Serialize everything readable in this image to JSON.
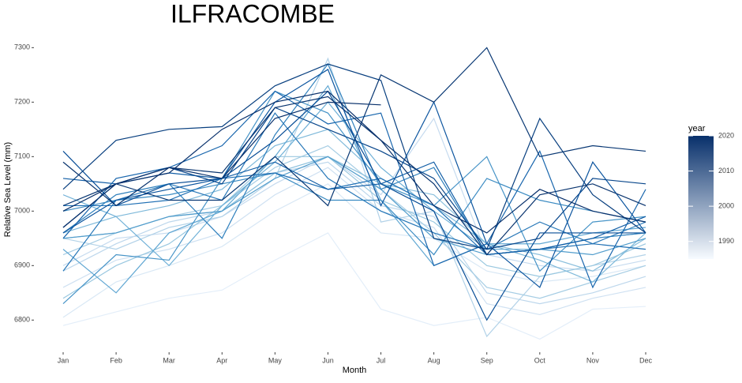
{
  "chart_data": {
    "type": "line",
    "title": "ILFRACOMBE",
    "x_label": "Month",
    "y_label": "Relative Sea Level (mm)",
    "categories": [
      "Jan",
      "Feb",
      "Mar",
      "Apr",
      "May",
      "Jun",
      "Jul",
      "Aug",
      "Sep",
      "Oct",
      "Nov",
      "Dec"
    ],
    "ylim": [
      6770,
      7315
    ],
    "yticks": [
      6800,
      6900,
      7000,
      7100,
      7200,
      7300
    ],
    "grid": false,
    "legend": {
      "title": "year",
      "ticks": [
        1990,
        2000,
        2010,
        2020
      ],
      "range": [
        1985,
        2020
      ],
      "colors": [
        "#f7fbff",
        "#08306b"
      ]
    },
    "series": [
      {
        "year": 1986,
        "color": "#e3eef9",
        "values": [
          6790,
          6815,
          6840,
          6855,
          6910,
          6960,
          6820,
          6790,
          6805,
          6765,
          6820,
          6825
        ]
      },
      {
        "year": 1988,
        "color": "#d9e8f5",
        "values": [
          6805,
          6870,
          6900,
          6935,
          7000,
          7050,
          6960,
          6950,
          6890,
          6870,
          6880,
          6900
        ]
      },
      {
        "year": 1990,
        "color": "#cfe1f2",
        "values": [
          6860,
          6910,
          6930,
          6960,
          7030,
          7080,
          7000,
          6970,
          6830,
          6810,
          6840,
          6860
        ]
      },
      {
        "year": 1991,
        "color": "#c6dbef",
        "values": [
          6900,
          6950,
          6960,
          6990,
          7050,
          7100,
          7030,
          7170,
          6920,
          6900,
          6890,
          6910
        ]
      },
      {
        "year": 1992,
        "color": "#bdd7ec",
        "values": [
          6890,
          6940,
          6980,
          7000,
          7070,
          7090,
          7010,
          6990,
          6850,
          6830,
          6850,
          6880
        ]
      },
      {
        "year": 1993,
        "color": "#b2d2e8",
        "values": [
          6950,
          6930,
          6970,
          6990,
          7060,
          7280,
          6980,
          7000,
          6770,
          6880,
          6900,
          6920
        ]
      },
      {
        "year": 1994,
        "color": "#a6cde4",
        "values": [
          6920,
          6960,
          6990,
          7010,
          7080,
          7120,
          7040,
          6960,
          6860,
          6840,
          6870,
          6900
        ]
      },
      {
        "year": 1995,
        "color": "#9ac8e0",
        "values": [
          6840,
          6900,
          6940,
          7010,
          7100,
          7100,
          7020,
          6980,
          6900,
          6880,
          6900,
          6940
        ]
      },
      {
        "year": 1996,
        "color": "#8cc0dd",
        "values": [
          6950,
          6960,
          6990,
          7000,
          7070,
          7100,
          7050,
          7030,
          6940,
          6920,
          6890,
          6950
        ]
      },
      {
        "year": 1997,
        "color": "#7fb9da",
        "values": [
          6960,
          6990,
          7010,
          7040,
          7120,
          7150,
          7060,
          7010,
          6940,
          6910,
          6870,
          6960
        ]
      },
      {
        "year": 1998,
        "color": "#6fb0d7",
        "values": [
          7030,
          6990,
          6900,
          7010,
          7090,
          7200,
          7080,
          7000,
          6930,
          6930,
          6950,
          6960
        ]
      },
      {
        "year": 1999,
        "color": "#62a8d3",
        "values": [
          6930,
          6850,
          6960,
          7000,
          7100,
          7230,
          7020,
          6900,
          6940,
          6940,
          6960,
          6970
        ]
      },
      {
        "year": 2000,
        "color": "#529dcc",
        "values": [
          6950,
          6960,
          6990,
          7000,
          7060,
          7100,
          7040,
          6950,
          6920,
          6930,
          6920,
          6950
        ]
      },
      {
        "year": 2001,
        "color": "#4794c7",
        "values": [
          6830,
          6920,
          6910,
          7060,
          7220,
          7180,
          7050,
          7010,
          7100,
          6890,
          6980,
          6990
        ]
      },
      {
        "year": 2002,
        "color": "#3b8bc2",
        "values": [
          7000,
          7020,
          7030,
          7050,
          7070,
          7020,
          7020,
          6920,
          7060,
          7020,
          7000,
          6980
        ]
      },
      {
        "year": 2003,
        "color": "#3181bd",
        "values": [
          6960,
          7030,
          7050,
          6950,
          7140,
          7270,
          7040,
          7080,
          6920,
          6930,
          6950,
          6960
        ]
      },
      {
        "year": 2004,
        "color": "#2878b8",
        "values": [
          6890,
          7020,
          7050,
          7020,
          7180,
          7060,
          7000,
          6960,
          6930,
          6980,
          6940,
          6980
        ]
      },
      {
        "year": 2005,
        "color": "#2070b4",
        "values": [
          7010,
          7010,
          7020,
          7060,
          7070,
          7040,
          7060,
          7010,
          6920,
          6930,
          6940,
          6930
        ]
      },
      {
        "year": 2006,
        "color": "#1966ad",
        "values": [
          6950,
          7060,
          7080,
          7120,
          7220,
          7160,
          7180,
          6900,
          6940,
          7110,
          6860,
          7040
        ]
      },
      {
        "year": 2007,
        "color": "#125ea6",
        "values": [
          7060,
          7050,
          7070,
          7060,
          7090,
          7040,
          7050,
          7090,
          6920,
          6930,
          6950,
          6990
        ]
      },
      {
        "year": 2008,
        "color": "#0c559f",
        "values": [
          6960,
          7020,
          7040,
          7060,
          7200,
          7260,
          7010,
          7200,
          6940,
          6860,
          7090,
          6960
        ]
      },
      {
        "year": 2009,
        "color": "#084d96",
        "values": [
          7110,
          7010,
          7050,
          7060,
          7130,
          7220,
          7050,
          7000,
          6800,
          6960,
          6960,
          6960
        ]
      },
      {
        "year": 2010,
        "color": "#08468b",
        "values": [
          6970,
          7050,
          7080,
          7050,
          7190,
          7150,
          7110,
          7060,
          6930,
          6950,
          7060,
          7050
        ]
      },
      {
        "year": 2012,
        "color": "#083f7f",
        "values": [
          7040,
          7130,
          7150,
          7155,
          7230,
          7270,
          7240,
          6950,
          6930,
          7170,
          7030,
          6960
        ]
      },
      {
        "year": 2014,
        "color": "#083773",
        "values": [
          7010,
          7050,
          7020,
          7020,
          7100,
          7010,
          7250,
          7200,
          7300,
          7100,
          7120,
          7110
        ]
      },
      {
        "year": 2016,
        "color": "#08336e",
        "values": [
          7090,
          7010,
          7080,
          7070,
          7190,
          7210,
          7130,
          7050,
          6920,
          7030,
          7050,
          7010
        ]
      },
      {
        "year": 2018,
        "color": "#08306b",
        "values": [
          6970,
          7050,
          7070,
          7150,
          7200,
          7220,
          7130,
          7010,
          6960,
          7040,
          7000,
          6980
        ]
      },
      {
        "year": 2020,
        "color": "#08306b",
        "values": [
          7000,
          7050,
          7080,
          7060,
          7170,
          7200,
          7195,
          null,
          null,
          null,
          null,
          null
        ]
      }
    ]
  }
}
